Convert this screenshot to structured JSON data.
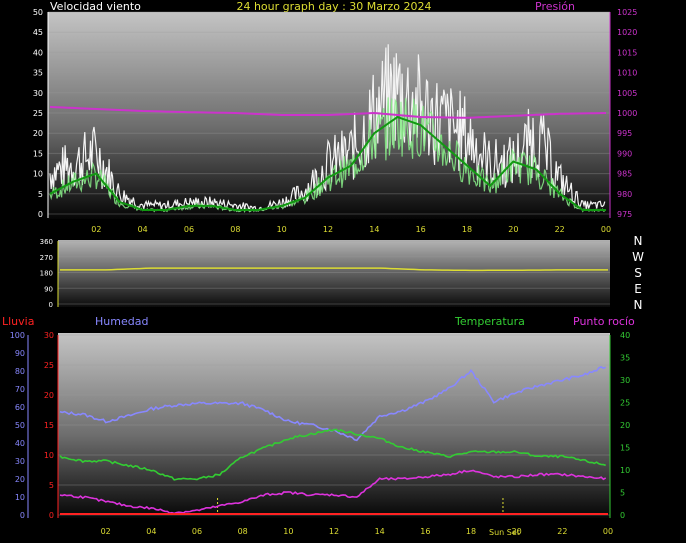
{
  "colors": {
    "wind": "#f4f4f4",
    "wind_avg": "#44dd44",
    "pressure": "#cc33cc",
    "direction": "#dddd33",
    "humidity": "#8888ff",
    "temperature": "#33cc33",
    "dewpoint": "#dd33dd",
    "rain": "#ff2222",
    "yellow": "#dddd33",
    "magenta": "#cc33cc",
    "green": "#33cc33",
    "red": "#ff2222",
    "blue": "#8888ff"
  },
  "header": {
    "wind_label": "Velocidad viento",
    "title": "24 hour graph day : 30 Marzo 2024",
    "pressure_label": "Presión"
  },
  "compass": [
    "N",
    "W",
    "S",
    "E",
    "N"
  ],
  "bottom_header": {
    "rain_label": "Lluvia",
    "humidity_label": "Humedad",
    "temperature_label": "Temperatura",
    "dewpoint_label": "Punto rocío"
  },
  "sunset_label": "Sun Set",
  "chart_data": [
    {
      "type": "line",
      "id": "wind_pressure",
      "x_ticks": [
        "02",
        "04",
        "06",
        "08",
        "10",
        "12",
        "14",
        "16",
        "18",
        "20",
        "22",
        "00"
      ],
      "y_left": {
        "ticks": [
          "0",
          "5",
          "10",
          "15",
          "20",
          "25",
          "30",
          "35",
          "40",
          "45",
          "50"
        ],
        "ylim": [
          0,
          50
        ]
      },
      "y_right": {
        "ticks": [
          "975",
          "980",
          "985",
          "990",
          "995",
          "1000",
          "1005",
          "1010",
          "1015",
          "1020",
          "1025"
        ],
        "ylim": [
          975,
          1025
        ]
      },
      "series": [
        {
          "key": "gust",
          "x": [
            0,
            1,
            2,
            3,
            4,
            5,
            6,
            7,
            8,
            9,
            10,
            11,
            12,
            13,
            14,
            15,
            16,
            17,
            18,
            19,
            20,
            21,
            22,
            23,
            24
          ],
          "values": [
            14,
            17,
            21,
            7,
            3,
            3,
            4,
            4,
            3,
            2,
            4,
            8,
            17,
            21,
            34,
            42,
            36,
            31,
            27,
            17,
            18,
            27,
            12,
            3,
            3
          ]
        },
        {
          "key": "wind_avg",
          "x": [
            0,
            1,
            2,
            3,
            4,
            5,
            6,
            7,
            8,
            9,
            10,
            11,
            12,
            13,
            14,
            15,
            16,
            17,
            18,
            19,
            20,
            21,
            22,
            23,
            24
          ],
          "values": [
            5,
            8,
            10,
            3,
            1,
            1,
            2,
            2,
            1,
            1,
            2,
            4,
            9,
            12,
            20,
            24,
            22,
            17,
            12,
            7,
            13,
            11,
            5,
            1,
            1
          ]
        },
        {
          "key": "pressure",
          "x": [
            0,
            2,
            4,
            6,
            8,
            10,
            12,
            14,
            16,
            18,
            20,
            22,
            24
          ],
          "values": [
            1001.5,
            1001,
            1000.5,
            1000.2,
            1000,
            999.5,
            999.5,
            1000,
            999,
            998.8,
            999.3,
            999.8,
            1000
          ]
        }
      ]
    },
    {
      "type": "line",
      "id": "wind_direction",
      "x_ticks": [],
      "y_left": {
        "ticks": [
          "0",
          "90",
          "180",
          "270",
          "360"
        ],
        "ylim": [
          0,
          360
        ]
      },
      "series": [
        {
          "key": "direction",
          "x": [
            0,
            2,
            4,
            6,
            8,
            10,
            12,
            14,
            16,
            18,
            20,
            22,
            24
          ],
          "values": [
            195,
            195,
            205,
            205,
            205,
            205,
            205,
            205,
            195,
            192,
            193,
            195,
            195
          ]
        }
      ]
    },
    {
      "type": "line",
      "id": "temperature_humidity",
      "x_ticks": [
        "02",
        "04",
        "06",
        "08",
        "10",
        "12",
        "14",
        "16",
        "18",
        "20",
        "22",
        "00"
      ],
      "y_humidity": {
        "ticks": [
          "0",
          "10",
          "20",
          "30",
          "40",
          "50",
          "60",
          "70",
          "80",
          "90",
          "100"
        ],
        "ylim": [
          0,
          100
        ]
      },
      "y_rain": {
        "ticks": [
          "0",
          "5",
          "10",
          "15",
          "20",
          "25",
          "30"
        ],
        "ylim": [
          0,
          30
        ]
      },
      "y_temp": {
        "ticks": [
          "0",
          "5",
          "10",
          "15",
          "20",
          "25",
          "30",
          "35",
          "40"
        ],
        "ylim": [
          0,
          40
        ]
      },
      "series": [
        {
          "key": "humidity",
          "x": [
            0,
            1,
            2,
            3,
            4,
            5,
            6,
            7,
            8,
            9,
            10,
            11,
            12,
            13,
            14,
            15,
            16,
            17,
            18,
            19,
            20,
            21,
            22,
            23,
            24
          ],
          "values": [
            57,
            56,
            52,
            55,
            59,
            61,
            62,
            62,
            62,
            58,
            52,
            50,
            47,
            42,
            55,
            58,
            63,
            70,
            80,
            63,
            68,
            72,
            75,
            78,
            83
          ]
        },
        {
          "key": "temperature",
          "x": [
            0,
            1,
            2,
            3,
            4,
            5,
            6,
            7,
            8,
            9,
            10,
            11,
            12,
            13,
            14,
            15,
            16,
            17,
            18,
            19,
            20,
            21,
            22,
            23,
            24
          ],
          "values": [
            13,
            12,
            12,
            11,
            10,
            8,
            8,
            9,
            13,
            15,
            17,
            18,
            19,
            18,
            17,
            15,
            14,
            13,
            14,
            14,
            14,
            13,
            13,
            12,
            11
          ]
        },
        {
          "key": "dewpoint",
          "x": [
            0,
            1,
            2,
            3,
            4,
            5,
            6,
            7,
            8,
            9,
            10,
            11,
            12,
            13,
            14,
            15,
            16,
            17,
            18,
            19,
            20,
            21,
            22,
            23,
            24
          ],
          "values": [
            4.5,
            4,
            3,
            2,
            1.5,
            0.5,
            1,
            2,
            3,
            4.5,
            5,
            4.5,
            4.5,
            4,
            8,
            8,
            8.5,
            9,
            10,
            8.5,
            8.5,
            9,
            9,
            8.5,
            8
          ]
        },
        {
          "key": "rain",
          "x": [
            0,
            24
          ],
          "values": [
            0,
            0
          ]
        }
      ]
    }
  ]
}
